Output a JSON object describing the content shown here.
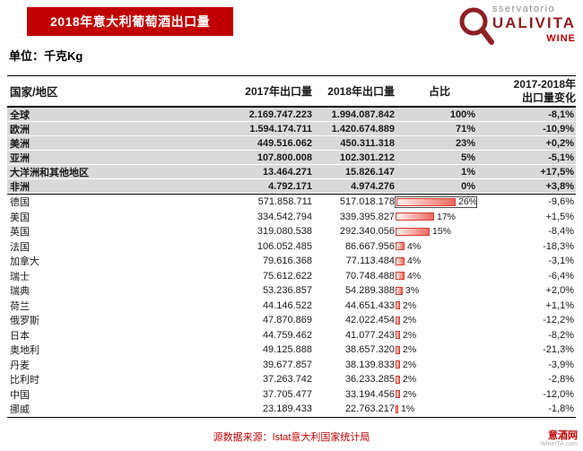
{
  "banner": {
    "title": "2018年意大利葡萄酒出口量"
  },
  "logo": {
    "line1": "sservatorio",
    "line2": "UALIVITA",
    "line3": "WINE"
  },
  "unit_label": "单位：千克Kg",
  "table": {
    "headers": {
      "region": "国家/地区",
      "y2017": "2017年出口量",
      "y2018": "2018年出口量",
      "share": "占比",
      "change_line1": "2017-2018年",
      "change_line2": "出口量变化"
    },
    "regions": [
      {
        "name": "全球",
        "v2017": "2.169.747.223",
        "v2018": "1.994.087.842",
        "share": "100%",
        "change": "-8,1%"
      },
      {
        "name": "欧洲",
        "v2017": "1.594.174.711",
        "v2018": "1.420.674.889",
        "share": "71%",
        "change": "-10,9%"
      },
      {
        "name": "美洲",
        "v2017": "449.516.062",
        "v2018": "450.311.318",
        "share": "23%",
        "change": "+0,2%"
      },
      {
        "name": "亚洲",
        "v2017": "107.800.008",
        "v2018": "102.301.212",
        "share": "5%",
        "change": "-5,1%"
      },
      {
        "name": "大洋洲和其他地区",
        "v2017": "13.464.271",
        "v2018": "15.826.147",
        "share": "1%",
        "change": "+17,5%"
      },
      {
        "name": "非洲",
        "v2017": "4.792.171",
        "v2018": "4.974.276",
        "share": "0%",
        "change": "+3,8%"
      }
    ],
    "countries": [
      {
        "name": "德国",
        "v2017": "571.858.711",
        "v2018": "517.018.178",
        "share": "26%",
        "pct": 26,
        "change": "-9,6%"
      },
      {
        "name": "美国",
        "v2017": "334.542.794",
        "v2018": "339.395.827",
        "share": "17%",
        "pct": 17,
        "change": "+1,5%"
      },
      {
        "name": "英国",
        "v2017": "319.080.538",
        "v2018": "292.340.056",
        "share": "15%",
        "pct": 15,
        "change": "-8,4%"
      },
      {
        "name": "法国",
        "v2017": "106.052.485",
        "v2018": "86.667.956",
        "share": "4%",
        "pct": 4,
        "change": "-18,3%"
      },
      {
        "name": "加拿大",
        "v2017": "79.616.368",
        "v2018": "77.113.484",
        "share": "4%",
        "pct": 4,
        "change": "-3,1%"
      },
      {
        "name": "瑞士",
        "v2017": "75.612.622",
        "v2018": "70.748.488",
        "share": "4%",
        "pct": 4,
        "change": "-6,4%"
      },
      {
        "name": "瑞典",
        "v2017": "53.236.857",
        "v2018": "54.289.388",
        "share": "3%",
        "pct": 3,
        "change": "+2,0%"
      },
      {
        "name": "荷兰",
        "v2017": "44.146.522",
        "v2018": "44.651.433",
        "share": "2%",
        "pct": 2,
        "change": "+1,1%"
      },
      {
        "name": "俄罗斯",
        "v2017": "47.870.869",
        "v2018": "42.022.454",
        "share": "2%",
        "pct": 2,
        "change": "-12,2%"
      },
      {
        "name": "日本",
        "v2017": "44.759.462",
        "v2018": "41.077.243",
        "share": "2%",
        "pct": 2,
        "change": "-8,2%"
      },
      {
        "name": "奥地利",
        "v2017": "49.125.888",
        "v2018": "38.657.320",
        "share": "2%",
        "pct": 2,
        "change": "-21,3%"
      },
      {
        "name": "丹麦",
        "v2017": "39.677.857",
        "v2018": "38.139.833",
        "share": "2%",
        "pct": 2,
        "change": "-3,9%"
      },
      {
        "name": "比利时",
        "v2017": "37.263.742",
        "v2018": "36.233.285",
        "share": "2%",
        "pct": 2,
        "change": "-2,8%"
      },
      {
        "name": "中国",
        "v2017": "37.705.477",
        "v2018": "33.194.456",
        "share": "2%",
        "pct": 2,
        "change": "-12,0%"
      },
      {
        "name": "挪威",
        "v2017": "23.189.433",
        "v2018": "22.763.217",
        "share": "1%",
        "pct": 1,
        "change": "-1,8%"
      }
    ]
  },
  "footer": {
    "source": "源数据来源：Istat意大利国家统计局",
    "watermark_cn": "意酒网",
    "watermark_en": "WineITA.com"
  },
  "colors": {
    "banner_red": "#C00000",
    "logo_dark_red": "#8e1f24",
    "row_gray": "#D9D9D9",
    "bar_gradient_start": "#fdf0ee",
    "bar_gradient_end": "#ec6a5e",
    "bar_border": "#d63c30"
  },
  "chart_data": {
    "type": "table",
    "title": "2018年意大利葡萄酒出口量",
    "unit": "千克Kg",
    "columns": [
      "国家/地区",
      "2017年出口量",
      "2018年出口量",
      "占比",
      "2017-2018年出口量变化"
    ],
    "rows": [
      [
        "全球",
        "2.169.747.223",
        "1.994.087.842",
        "100%",
        "-8,1%"
      ],
      [
        "欧洲",
        "1.594.174.711",
        "1.420.674.889",
        "71%",
        "-10,9%"
      ],
      [
        "美洲",
        "449.516.062",
        "450.311.318",
        "23%",
        "+0,2%"
      ],
      [
        "亚洲",
        "107.800.008",
        "102.301.212",
        "5%",
        "-5,1%"
      ],
      [
        "大洋洲和其他地区",
        "13.464.271",
        "15.826.147",
        "1%",
        "+17,5%"
      ],
      [
        "非洲",
        "4.792.171",
        "4.974.276",
        "0%",
        "+3,8%"
      ],
      [
        "德国",
        "571.858.711",
        "517.018.178",
        "26%",
        "-9,6%"
      ],
      [
        "美国",
        "334.542.794",
        "339.395.827",
        "17%",
        "+1,5%"
      ],
      [
        "英国",
        "319.080.538",
        "292.340.056",
        "15%",
        "-8,4%"
      ],
      [
        "法国",
        "106.052.485",
        "86.667.956",
        "4%",
        "-18,3%"
      ],
      [
        "加拿大",
        "79.616.368",
        "77.113.484",
        "4%",
        "-3,1%"
      ],
      [
        "瑞士",
        "75.612.622",
        "70.748.488",
        "4%",
        "-6,4%"
      ],
      [
        "瑞典",
        "53.236.857",
        "54.289.388",
        "3%",
        "+2,0%"
      ],
      [
        "荷兰",
        "44.146.522",
        "44.651.433",
        "2%",
        "+1,1%"
      ],
      [
        "俄罗斯",
        "47.870.869",
        "42.022.454",
        "2%",
        "-12,2%"
      ],
      [
        "日本",
        "44.759.462",
        "41.077.243",
        "2%",
        "-8,2%"
      ],
      [
        "奥地利",
        "49.125.888",
        "38.657.320",
        "2%",
        "-21,3%"
      ],
      [
        "丹麦",
        "39.677.857",
        "38.139.833",
        "2%",
        "-3,9%"
      ],
      [
        "比利时",
        "37.263.742",
        "36.233.285",
        "2%",
        "-2,8%"
      ],
      [
        "中国",
        "37.705.477",
        "33.194.456",
        "2%",
        "-12,0%"
      ],
      [
        "挪威",
        "23.189.433",
        "22.763.217",
        "1%",
        "-1,8%"
      ]
    ],
    "bar_column": {
      "type": "bar",
      "categories": [
        "德国",
        "美国",
        "英国",
        "法国",
        "加拿大",
        "瑞士",
        "瑞典",
        "荷兰",
        "俄罗斯",
        "日本",
        "奥地利",
        "丹麦",
        "比利时",
        "中国",
        "挪威"
      ],
      "values": [
        26,
        17,
        15,
        4,
        4,
        4,
        3,
        2,
        2,
        2,
        2,
        2,
        2,
        2,
        1
      ],
      "xlim": [
        0,
        30
      ]
    }
  }
}
